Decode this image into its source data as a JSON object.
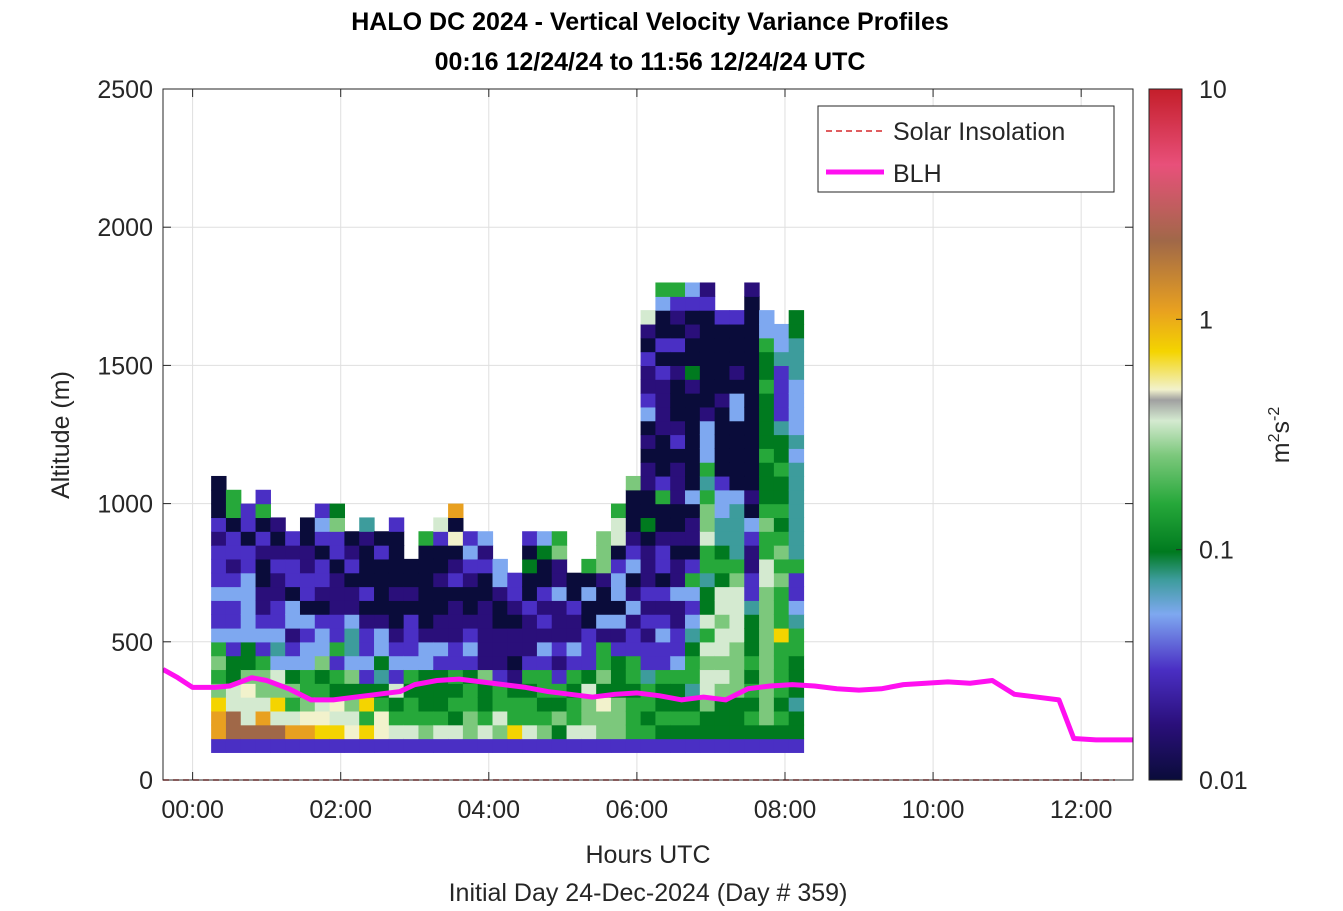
{
  "title_line1": "HALO DC 2024 - Vertical Velocity Variance Profiles",
  "title_line2": "00:16 12/24/24 to 11:56 12/24/24  UTC",
  "chart_data": {
    "type": "heatmap",
    "xlabel": "Hours UTC",
    "ylabel": "Altitude (m)",
    "footer": "Initial Day 24-Dec-2024 (Day # 359)",
    "xlim": [
      -0.4,
      12.7
    ],
    "ylim": [
      0,
      2500
    ],
    "x_ticks": [
      "00:00",
      "02:00",
      "04:00",
      "06:00",
      "08:00",
      "10:00",
      "12:00"
    ],
    "x_tick_values": [
      0,
      2,
      4,
      6,
      8,
      10,
      12
    ],
    "y_ticks": [
      0,
      500,
      1000,
      1500,
      2000,
      2500
    ],
    "grid": true,
    "colorbar": {
      "label_base": "m",
      "label_sup1": "2",
      "label_mid": "s",
      "label_sup2": "-2",
      "scale": "log",
      "range": [
        0.01,
        10
      ],
      "ticks": [
        "0.01",
        "0.1",
        "1",
        "10"
      ],
      "colors": [
        "#0a0c3a",
        "#2a0f7a",
        "#4a2fc4",
        "#7ea8f0",
        "#3d9c9c",
        "#007a1f",
        "#26a83a",
        "#7cc87c",
        "#d4ead0",
        "#f2f2cc",
        "#f4d400",
        "#e8a020",
        "#a06848",
        "#e8507a",
        "#c41e2a"
      ]
    },
    "legend": {
      "position": "top-right",
      "entries": [
        {
          "name": "Solar Insolation",
          "color": "#d62728",
          "style": "dashed"
        },
        {
          "name": "BLH",
          "color": "#ff10f0",
          "style": "solid"
        }
      ]
    },
    "blh_series": {
      "name": "BLH",
      "x": [
        -0.4,
        -0.2,
        0.0,
        0.15,
        0.3,
        0.5,
        0.8,
        1.0,
        1.3,
        1.6,
        1.9,
        2.2,
        2.5,
        2.8,
        3.0,
        3.3,
        3.6,
        3.9,
        4.2,
        4.5,
        4.8,
        5.1,
        5.4,
        5.7,
        6.0,
        6.3,
        6.6,
        6.9,
        7.2,
        7.5,
        7.8,
        8.1,
        8.4,
        8.7,
        9.0,
        9.3,
        9.6,
        9.9,
        10.2,
        10.5,
        10.8,
        11.1,
        11.4,
        11.7,
        11.9,
        12.2,
        12.5,
        12.7
      ],
      "y": [
        400,
        370,
        335,
        335,
        335,
        340,
        370,
        360,
        330,
        290,
        290,
        300,
        310,
        320,
        345,
        360,
        365,
        355,
        345,
        335,
        320,
        310,
        300,
        310,
        315,
        305,
        290,
        300,
        290,
        330,
        340,
        345,
        340,
        330,
        325,
        330,
        345,
        350,
        355,
        350,
        360,
        310,
        300,
        290,
        150,
        145,
        145,
        145
      ]
    },
    "solar_insolation": {
      "name": "Solar Insolation",
      "y": 0
    },
    "variance_cells": {
      "x_start": 0.25,
      "dt": 0.2,
      "dz": 50,
      "columns": [
        {
          "col": 0,
          "z0": 100,
          "codes": "2BBA7676322322212000"
        },
        {
          "col": 1,
          "z0": 100,
          "codes": "2CC8855232232122066"
        },
        {
          "col": 2,
          "z0": 100,
          "codes": "2C8897553333322022"
        },
        {
          "col": 3,
          "z0": 100,
          "codes": "2CB8776232110012062"
        },
        {
          "col": 4,
          "z0": 100,
          "codes": "2C8A7834322112101"
        },
        {
          "col": 5,
          "z0": 100,
          "codes": "2B86753213302212"
        },
        {
          "col": 6,
          "z0": 100,
          "codes": "2B976633230221100"
        },
        {
          "col": 7,
          "z0": 100,
          "codes": "2A9865733201220232"
        },
        {
          "col": 8,
          "z0": 100,
          "codes": "2A8956262211102275"
        },
        {
          "col": 9,
          "z0": 100,
          "codes": "2987573443110210"
        },
        {
          "col": 10,
          "z0": 100,
          "codes": "2A6A5232210200014"
        },
        {
          "col": 11,
          "z0": 100,
          "codes": "2996545331000020"
        },
        {
          "col": 12,
          "z0": 100,
          "codes": "28658232100100002"
        },
        {
          "col": 13,
          "z0": 100,
          "codes": "28665632220100"
        },
        {
          "col": 14,
          "z0": 100,
          "codes": "2765553310000006"
        },
        {
          "col": 15,
          "z0": 100,
          "codes": "28655523110010028"
        },
        {
          "col": 16,
          "z0": 100,
          "codes": "28565622111021090B"
        },
        {
          "col": 17,
          "z0": 100,
          "codes": "2776652321001232"
        },
        {
          "col": 18,
          "z0": 100,
          "codes": "2865571111100213"
        },
        {
          "col": 19,
          "z0": 100,
          "codes": "27866211100133"
        },
        {
          "col": 20,
          "z0": 100,
          "codes": "2A66510110122"
        },
        {
          "col": 21,
          "z0": 100,
          "codes": "2866562111200502"
        },
        {
          "col": 22,
          "z0": 100,
          "codes": "2765662312120053"
        },
        {
          "col": 23,
          "z0": 100,
          "codes": "2575621211131176"
        },
        {
          "col": 24,
          "z0": 100,
          "codes": "2866562311200"
        },
        {
          "col": 25,
          "z0": 100,
          "codes": "28778522200306"
        },
        {
          "col": 26,
          "z0": 100,
          "codes": "2779576613001777"
        },
        {
          "col": 27,
          "z0": 100,
          "codes": "277755521303320886"
        },
        {
          "col": 28,
          "z0": 100,
          "codes": "26665662213103210007"
        },
        {
          "col": 29,
          "z0": 100,
          "codes": "26566422121211105001101032112018"
        },
        {
          "col": 30,
          "z0": 100,
          "codes": "2565562232120221006200011112020036"
        },
        {
          "col": 31,
          "z0": 100,
          "codes": "2565563221131101001110210001020126"
        },
        {
          "col": 32,
          "z0": 100,
          "codes": "2565466543236201103000000015001023"
        },
        {
          "col": 33,
          "z0": 100,
          "codes": "2557887868554668776463331000000021"
        },
        {
          "col": 34,
          "z0": 100,
          "codes": "25557878878856544332000001000002"
        },
        {
          "col": 35,
          "z0": 100,
          "codes": "25557777888876444430000033010002"
        },
        {
          "col": 36,
          "z0": 100,
          "codes": "2565656555422112301000000000000001"
        },
        {
          "col": 37,
          "z0": 100,
          "codes": "25777777777788667655565555655633"
        },
        {
          "col": 38,
          "z0": 100,
          "codes": "25656666A6667676565565542222433"
        },
        {
          "col": 39,
          "z0": 100,
          "codes": "25545556643226444444434333344455"
        }
      ]
    }
  }
}
